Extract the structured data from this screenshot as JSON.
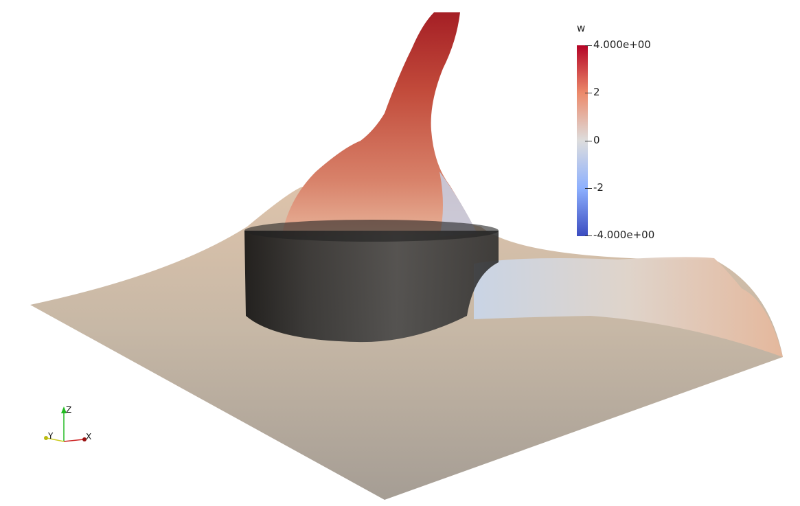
{
  "colorbar": {
    "title": "w",
    "max_label": "4.000e+00",
    "label_2": "2",
    "label_0": "0",
    "label_m2": "-2",
    "min_label": "-4.000e+00",
    "range": [
      -4,
      4
    ],
    "colors": {
      "high": "#b40426",
      "mid": "#dddddd",
      "low": "#3b4cc0"
    }
  },
  "orientation_axes": {
    "z": "Z",
    "y": "Y",
    "x": "X"
  },
  "colors": {
    "surface": "#c9bba9",
    "plume": "#c9604a",
    "plume_top": "#a51f25",
    "cylinder": "#1a1a1a",
    "background": "#ffffff"
  }
}
